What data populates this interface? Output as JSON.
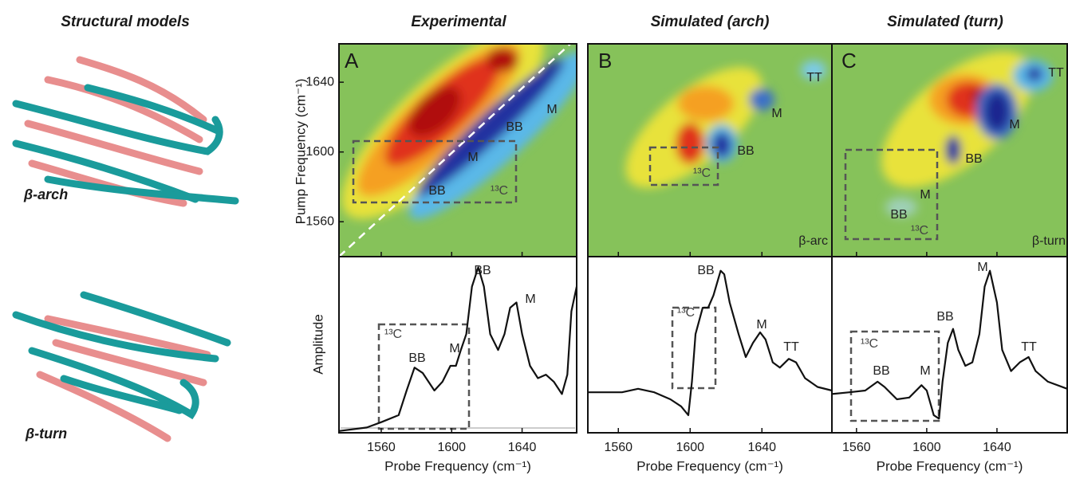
{
  "column_headers": [
    "Structural models",
    "Experimental",
    "Simulated (arch)",
    "Simulated (turn)"
  ],
  "models": {
    "arch_label": "β-arch",
    "turn_label": "β-turn"
  },
  "axis_labels": {
    "pump": "Pump Frequency (cm⁻¹)",
    "amplitude": "Amplitude"
  },
  "panels": [
    {
      "letter": "A",
      "x_label": "Probe Frequency (cm⁻¹)",
      "xlim": [
        1536,
        1671
      ],
      "xticks": [
        1560,
        1600,
        1640
      ],
      "ylim": [
        1540,
        1662
      ],
      "yticks": [
        1560,
        1600,
        1640
      ],
      "map_annotations": [
        "M",
        "BB",
        "M",
        "BB",
        "¹³C"
      ],
      "spectrum_annotations": [
        "BB",
        "M",
        "¹³C",
        "BB",
        "M"
      ],
      "spectrum": {
        "type": "line",
        "color": "#111111",
        "ylim": [
          0,
          1
        ],
        "x": [
          1536,
          1551.8,
          1560,
          1569.9,
          1574.4,
          1578.9,
          1583.5,
          1590.2,
          1594.8,
          1599.3,
          1602.4,
          1605.2,
          1608.3,
          1611.5,
          1615.1,
          1618.3,
          1621.9,
          1626.4,
          1630,
          1633.2,
          1636.8,
          1640,
          1644.5,
          1649,
          1653.5,
          1658,
          1662.6,
          1665.7,
          1668,
          1671
        ],
        "values": [
          0.01,
          0.03,
          0.06,
          0.1,
          0.24,
          0.37,
          0.34,
          0.24,
          0.29,
          0.38,
          0.38,
          0.47,
          0.56,
          0.83,
          0.94,
          0.83,
          0.56,
          0.47,
          0.56,
          0.71,
          0.74,
          0.56,
          0.38,
          0.31,
          0.33,
          0.29,
          0.22,
          0.33,
          0.69,
          0.83
        ]
      }
    },
    {
      "letter": "B",
      "x_label": "Probe Frequency (cm⁻¹)",
      "map_label": "β-arc",
      "xlim": [
        1543,
        1679
      ],
      "xticks": [
        1560,
        1600,
        1640
      ],
      "map_annotations": [
        "TT",
        "M",
        "BB",
        "¹³C"
      ],
      "spectrum_annotations": [
        "BB",
        "¹³C",
        "M",
        "TT"
      ],
      "spectrum": {
        "type": "line",
        "color": "#111111",
        "ylim": [
          0,
          1
        ],
        "x": [
          1543,
          1562,
          1571,
          1580,
          1589,
          1595,
          1599,
          1601,
          1603,
          1607,
          1610,
          1613,
          1617,
          1619,
          1622,
          1627,
          1631,
          1635,
          1639,
          1642,
          1646,
          1650,
          1655,
          1659,
          1664,
          1671,
          1679
        ],
        "values": [
          0.23,
          0.23,
          0.25,
          0.23,
          0.19,
          0.15,
          0.1,
          0.29,
          0.56,
          0.71,
          0.71,
          0.78,
          0.92,
          0.9,
          0.74,
          0.56,
          0.43,
          0.51,
          0.57,
          0.53,
          0.4,
          0.37,
          0.42,
          0.4,
          0.31,
          0.26,
          0.24
        ]
      }
    },
    {
      "letter": "C",
      "x_label": "Probe Frequency (cm⁻¹)",
      "map_label": "β-turn",
      "xlim": [
        1546,
        1680
      ],
      "xticks": [
        1560,
        1600,
        1640
      ],
      "map_annotations": [
        "TT",
        "M",
        "BB",
        "M",
        "BB",
        "¹³C"
      ],
      "spectrum_annotations": [
        "M",
        "BB",
        "¹³C",
        "BB",
        "M",
        "TT"
      ],
      "spectrum": {
        "type": "line",
        "color": "#111111",
        "ylim": [
          0,
          1
        ],
        "x": [
          1546,
          1556,
          1565,
          1572,
          1576,
          1583,
          1590,
          1597,
          1600,
          1604,
          1607,
          1609,
          1612,
          1615,
          1618,
          1622,
          1626,
          1630,
          1633,
          1636,
          1640,
          1643,
          1648,
          1653,
          1658,
          1662,
          1669,
          1680
        ],
        "values": [
          0.22,
          0.23,
          0.24,
          0.29,
          0.26,
          0.19,
          0.2,
          0.27,
          0.24,
          0.1,
          0.08,
          0.29,
          0.51,
          0.59,
          0.47,
          0.38,
          0.4,
          0.56,
          0.83,
          0.92,
          0.74,
          0.47,
          0.35,
          0.4,
          0.43,
          0.35,
          0.29,
          0.25
        ]
      }
    }
  ]
}
